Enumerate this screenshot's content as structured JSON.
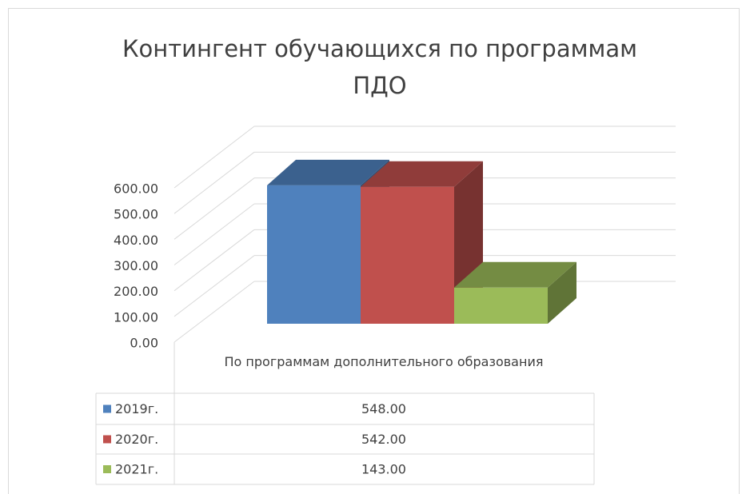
{
  "chart_data": {
    "type": "bar3d",
    "title": "Контингент обучающихся по программам ПДО",
    "categories": [
      "По программам дополнительного образования"
    ],
    "series": [
      {
        "name": "2019г.",
        "color": "#4f81bd",
        "values": [
          548
        ],
        "value_labels": [
          "548.00"
        ]
      },
      {
        "name": "2020г.",
        "color": "#c0504d",
        "values": [
          542
        ],
        "value_labels": [
          "542.00"
        ]
      },
      {
        "name": "2021г.",
        "color": "#9bbb59",
        "values": [
          143
        ],
        "value_labels": [
          "143.00"
        ]
      }
    ],
    "ylim": [
      0,
      600
    ],
    "yticks": [
      {
        "value": 0,
        "label": "0.00"
      },
      {
        "value": 100,
        "label": "100.00"
      },
      {
        "value": 200,
        "label": "200.00"
      },
      {
        "value": 300,
        "label": "300.00"
      },
      {
        "value": 400,
        "label": "400.00"
      },
      {
        "value": 500,
        "label": "500.00"
      },
      {
        "value": 600,
        "label": "600.00"
      }
    ],
    "grid": true
  }
}
